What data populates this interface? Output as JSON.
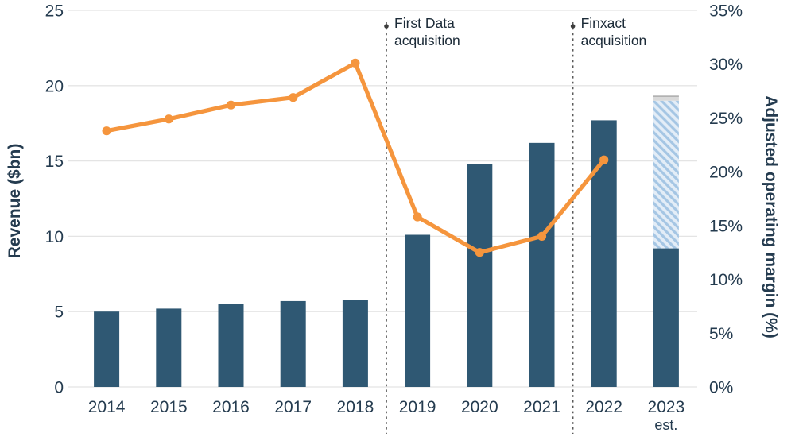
{
  "chart_data": {
    "type": "combo-bar-line",
    "title": "",
    "categories": [
      "2014",
      "2015",
      "2016",
      "2017",
      "2018",
      "2019",
      "2020",
      "2021",
      "2022",
      "2023"
    ],
    "category_sublabels": [
      "",
      "",
      "",
      "",
      "",
      "",
      "",
      "",
      "",
      "est."
    ],
    "bar_series": {
      "name": "Revenue",
      "axis": "left",
      "values": [
        5.0,
        5.2,
        5.5,
        5.7,
        5.8,
        10.1,
        14.8,
        16.2,
        17.7,
        null
      ],
      "color": "#2f5873"
    },
    "stacked_final_bar": {
      "category": "2023",
      "note": "estimated year shown as stacked segments",
      "segments": [
        {
          "name": "solid-portion",
          "value": 9.2,
          "style": "solid",
          "color": "#2f5873"
        },
        {
          "name": "hatched-estimate-portion",
          "value": 9.8,
          "style": "hatch",
          "color": "#9dc3e6"
        },
        {
          "name": "gray-cap",
          "value": 0.3,
          "style": "solid",
          "color": "#d9d9d9"
        }
      ]
    },
    "line_series": {
      "name": "Adjusted operating margin",
      "axis": "right",
      "values": [
        23.8,
        24.9,
        26.2,
        26.9,
        30.1,
        15.8,
        12.5,
        14.0,
        21.1,
        null
      ],
      "color": "#f5953d"
    },
    "left_axis": {
      "title": "Revenue ($bn)",
      "min": 0,
      "max": 25,
      "tick_step": 5,
      "tick_labels": [
        "0",
        "5",
        "10",
        "15",
        "20",
        "25"
      ]
    },
    "right_axis": {
      "title": "Adjusted operating margin (%)",
      "min": 0,
      "max": 35,
      "tick_step": 5,
      "tick_labels": [
        "0%",
        "5%",
        "10%",
        "15%",
        "20%",
        "25%",
        "30%",
        "35%"
      ]
    },
    "annotations": [
      {
        "text_lines": [
          "First Data",
          "acquisition"
        ],
        "after_category_index": 4
      },
      {
        "text_lines": [
          "Finxact",
          "acquisition"
        ],
        "after_category_index": 7
      }
    ],
    "grid": "horizontal",
    "legend": "none",
    "colors": {
      "bar": "#2f5873",
      "line": "#f5953d",
      "grid": "#e4e4e4",
      "text": "#243b4f",
      "annotation_line": "#5a5a5a",
      "annotation_dot": "#3d3d3d",
      "hatch_light": "#e3edf7",
      "hatch_dark": "#a5c6e4",
      "cap_gray": "#d9d9d9",
      "cap_edge": "#a6a6a6"
    }
  }
}
